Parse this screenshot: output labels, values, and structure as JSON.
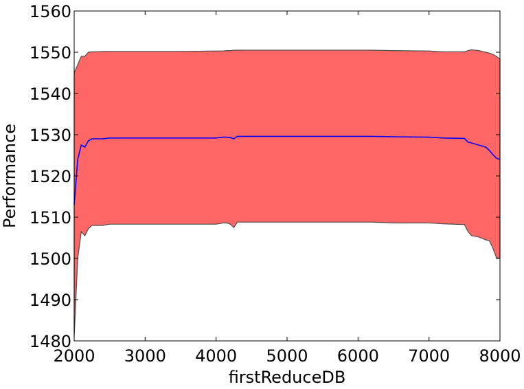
{
  "chart_data": {
    "type": "area",
    "xlabel": "firstReduceDB",
    "ylabel": "Performance",
    "xlim": [
      2000,
      8000
    ],
    "ylim": [
      1480,
      1560
    ],
    "xticks": [
      "2000",
      "3000",
      "4000",
      "5000",
      "6000",
      "7000",
      "8000"
    ],
    "yticks": [
      "1480",
      "1490",
      "1500",
      "1510",
      "1520",
      "1530",
      "1540",
      "1550",
      "1560"
    ],
    "grid": false,
    "x": [
      2000,
      2050,
      2100,
      2150,
      2200,
      2250,
      2300,
      2400,
      2500,
      3000,
      3500,
      4000,
      4100,
      4150,
      4200,
      4250,
      4300,
      5000,
      5500,
      6000,
      6200,
      6500,
      7000,
      7200,
      7500,
      7550,
      7600,
      7700,
      7800,
      7850,
      7900,
      7950,
      8000
    ],
    "series": [
      {
        "values": [
          1513,
          1524,
          1527.5,
          1527,
          1528.5,
          1529,
          1529,
          1529,
          1529.2,
          1529.2,
          1529.2,
          1529.2,
          1529.4,
          1529.4,
          1529.3,
          1529.0,
          1529.6,
          1529.6,
          1529.6,
          1529.6,
          1529.6,
          1529.5,
          1529.4,
          1529.2,
          1529.1,
          1528.2,
          1528.0,
          1527.5,
          1527.0,
          1526.2,
          1525.2,
          1524.3,
          1524.0
        ],
        "lower": [
          1481,
          1500,
          1506.5,
          1505.5,
          1507.2,
          1508,
          1508,
          1508,
          1508.3,
          1508.3,
          1508.3,
          1508.3,
          1508.6,
          1508.6,
          1508.3,
          1507.5,
          1508.8,
          1508.8,
          1508.8,
          1508.8,
          1508.8,
          1508.6,
          1508.6,
          1508.4,
          1508.2,
          1506.5,
          1505.5,
          1505.2,
          1504.5,
          1504.3,
          1502.5,
          1500.2,
          1500.0
        ],
        "upper": [
          1545,
          1547,
          1549,
          1549,
          1550,
          1550.1,
          1550.1,
          1550.2,
          1550.2,
          1550.2,
          1550.2,
          1550.3,
          1550.3,
          1550.4,
          1550.4,
          1550.5,
          1550.5,
          1550.5,
          1550.5,
          1550.5,
          1550.5,
          1550.4,
          1550.3,
          1550.1,
          1550.1,
          1550.4,
          1550.6,
          1550.4,
          1550.0,
          1549.8,
          1549.5,
          1549.0,
          1548.3
        ]
      }
    ],
    "colors": {
      "band_fill": "#ff6666",
      "band_edge": "#4d4d4d",
      "mean_line": "#0000ff",
      "axes": "#000000",
      "background": "#ffffff"
    }
  }
}
